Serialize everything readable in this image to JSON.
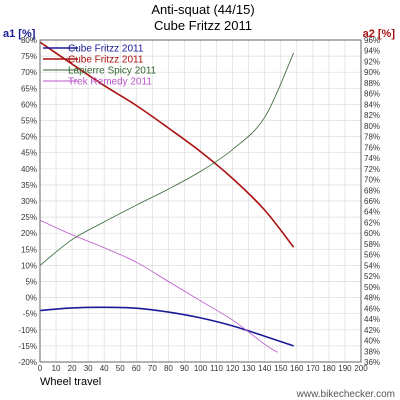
{
  "chart_data": {
    "type": "line",
    "title": "Anti-squat (44/15)",
    "subtitle": "Cube Fritzz 2011",
    "xlabel": "Wheel travel",
    "y1label": "a1 [%]",
    "y2label": "a2 [%]",
    "xlim": [
      0,
      200
    ],
    "y1lim": [
      -20,
      80
    ],
    "y2lim": [
      36,
      96
    ],
    "xticks": [
      0,
      10,
      20,
      30,
      40,
      50,
      60,
      70,
      80,
      90,
      100,
      110,
      120,
      130,
      140,
      150,
      160,
      170,
      180,
      190,
      200
    ],
    "y1ticks": [
      -20,
      -15,
      -10,
      -5,
      0,
      5,
      10,
      15,
      20,
      25,
      30,
      35,
      40,
      45,
      50,
      55,
      60,
      65,
      70,
      75,
      80
    ],
    "y2ticks": [
      36,
      38,
      40,
      42,
      44,
      46,
      48,
      50,
      52,
      54,
      56,
      58,
      60,
      62,
      64,
      66,
      68,
      70,
      72,
      74,
      76,
      78,
      80,
      82,
      84,
      86,
      88,
      90,
      92,
      94,
      96
    ],
    "y1_suffix": "%",
    "y2_suffix": "%",
    "grid": true,
    "legend_position": "top-left",
    "watermark": "www.bikechecker.com",
    "series": [
      {
        "name": "Cube Fritzz 2011",
        "axis": "a1",
        "color": "#1a1a99",
        "x": [
          0,
          20,
          40,
          60,
          80,
          100,
          120,
          140,
          158
        ],
        "y": [
          -4,
          -3.2,
          -3,
          -3.3,
          -4.5,
          -6.3,
          -8.8,
          -12,
          -15
        ]
      },
      {
        "name": "Cube Fritzz 2011",
        "axis": "a2",
        "color": "#aa1111",
        "x": [
          0,
          20,
          40,
          60,
          80,
          100,
          120,
          140,
          158
        ],
        "y": [
          95.6,
          91.5,
          87.5,
          83.8,
          79.6,
          75.2,
          70.2,
          64.3,
          57.4
        ]
      },
      {
        "name": "Lapierre Spicy 2011",
        "axis": "a1",
        "color": "#336633",
        "x": [
          0,
          20,
          40,
          60,
          80,
          100,
          120,
          140,
          158
        ],
        "y": [
          10,
          18,
          23.5,
          28.7,
          33.7,
          39.2,
          46,
          56,
          76
        ]
      },
      {
        "name": "Trek Remedy 2011",
        "axis": "a1",
        "color": "#bb55cc",
        "x": [
          0,
          20,
          40,
          60,
          80,
          100,
          120,
          140,
          148
        ],
        "y": [
          24,
          19.5,
          15.5,
          11,
          5,
          -1,
          -7,
          -14.5,
          -17
        ]
      }
    ]
  }
}
